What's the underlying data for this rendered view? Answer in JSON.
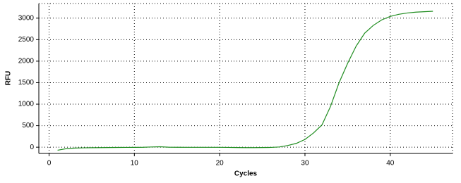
{
  "chart_data": {
    "type": "line",
    "x_label": "Cycles",
    "y_label": "RFU",
    "x": [
      1,
      2,
      3,
      4,
      5,
      6,
      7,
      8,
      9,
      10,
      11,
      12,
      13,
      14,
      15,
      16,
      17,
      18,
      19,
      20,
      21,
      22,
      23,
      24,
      25,
      26,
      27,
      28,
      29,
      30,
      31,
      32,
      33,
      34,
      35,
      36,
      37,
      38,
      39,
      40,
      41,
      42,
      43,
      44,
      45
    ],
    "series": [
      {
        "name": "RFU",
        "color": "#1e8c1e",
        "values": [
          -70,
          -35,
          -20,
          -15,
          -12,
          -10,
          -8,
          -6,
          -5,
          -4,
          -2,
          5,
          10,
          0,
          -2,
          -3,
          -3,
          -3,
          -3,
          -3,
          -5,
          -8,
          -10,
          -10,
          -8,
          -5,
          5,
          40,
          90,
          180,
          330,
          520,
          950,
          1500,
          1950,
          2350,
          2650,
          2830,
          2960,
          3040,
          3090,
          3120,
          3140,
          3150,
          3160
        ]
      }
    ],
    "xlim": [
      -1.2,
      47.3
    ],
    "ylim": [
      -145,
      3340
    ],
    "xticks": [
      0,
      10,
      20,
      30,
      40
    ],
    "yticks": [
      0,
      500,
      1000,
      1500,
      2000,
      2500,
      3000
    ],
    "grid": true
  }
}
